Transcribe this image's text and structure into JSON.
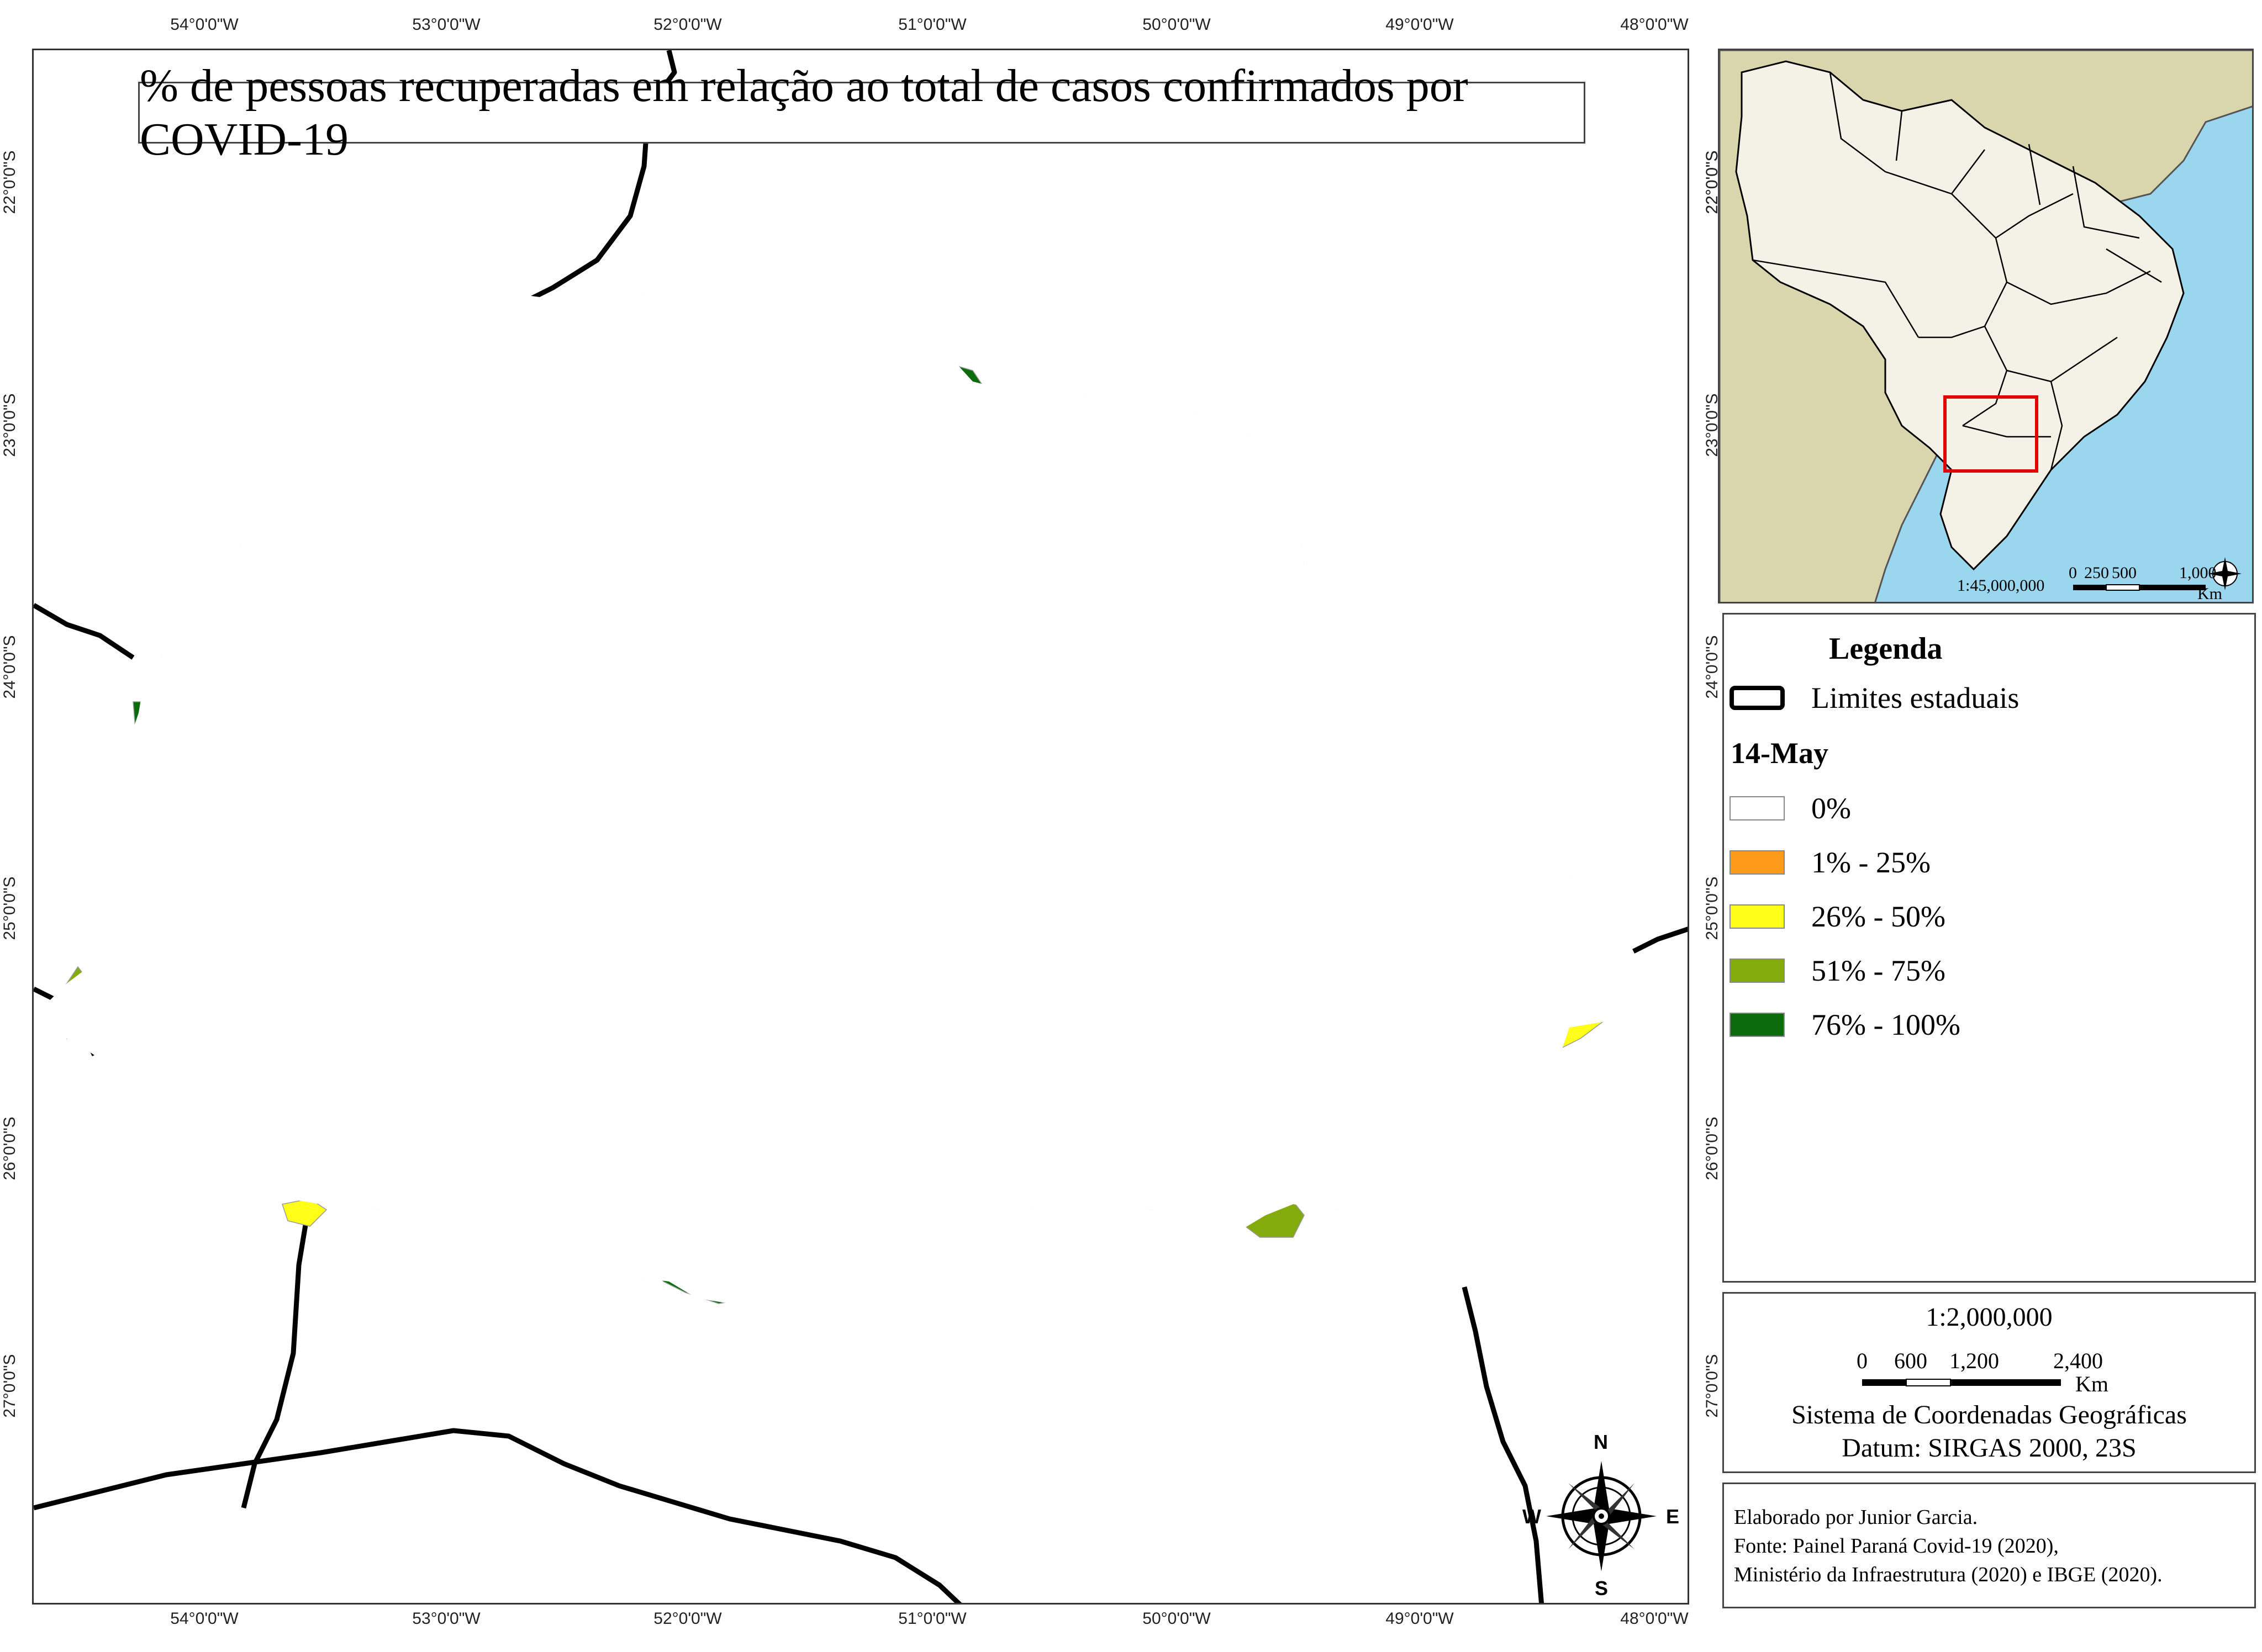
{
  "map": {
    "title": "% de pessoas recuperadas em relação ao total de casos confirmados por COVID-19",
    "longitude_ticks": [
      "54°0'0\"W",
      "53°0'0\"W",
      "52°0'0\"W",
      "51°0'0\"W",
      "50°0'0\"W",
      "49°0'0\"W",
      "48°0'0\"W"
    ],
    "latitude_ticks": [
      "22°0'0\"S",
      "23°0'0\"S",
      "24°0'0\"S",
      "25°0'0\"S",
      "26°0'0\"S",
      "27°0'0\"S"
    ],
    "compass": {
      "n": "N",
      "s": "S",
      "e": "E",
      "w": "W"
    }
  },
  "colors": {
    "c0": "#ffffff",
    "c1": "#ff9a1a",
    "c2": "#ffff1a",
    "c3": "#84ab0c",
    "c4": "#0c6b0c",
    "ocean": "#9ad6ee",
    "land_other": "#d9d6ae",
    "brazil": "#f4f2e6",
    "inset_box": "#e00000"
  },
  "inset": {
    "scale_label": "1:45,000,000",
    "scale_ticks": [
      "0",
      "250",
      "500",
      "1,000"
    ],
    "scale_unit": "Km",
    "lat_labels": [
      "22°0'0\"S",
      "23°0'0\"S",
      "24°0'0\"S"
    ]
  },
  "legend": {
    "title": "Legenda",
    "border_label": "Limites estaduais",
    "date": "14-May",
    "classes": [
      {
        "label": "0%",
        "color": "#ffffff"
      },
      {
        "label": "1% - 25%",
        "color": "#ff9a1a"
      },
      {
        "label": "26% - 50%",
        "color": "#ffff1a"
      },
      {
        "label": "51% - 75%",
        "color": "#84ab0c"
      },
      {
        "label": "76% - 100%",
        "color": "#0c6b0c"
      }
    ]
  },
  "scale": {
    "ratio": "1:2,000,000",
    "ticks": [
      "0",
      "600",
      "1,200",
      "2,400"
    ],
    "unit": "Km",
    "crs_line1": "Sistema de Coordenadas Geográficas",
    "crs_line2": "Datum: SIRGAS 2000, 23S"
  },
  "credits": {
    "line1": "Elaborado por Junior Garcia.",
    "line2": "Fonte: Painel Paraná Covid-19 (2020),",
    "line3": "Ministério da Infraestrutura (2020) e IBGE (2020)."
  }
}
